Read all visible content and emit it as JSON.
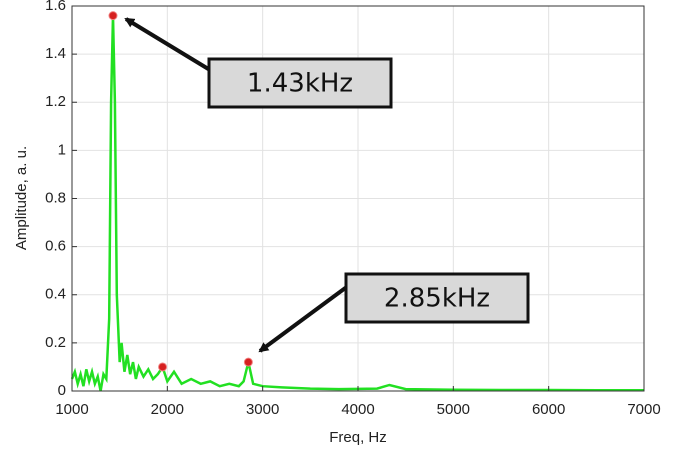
{
  "chart_data": {
    "type": "line",
    "xlabel": "Freq, Hz",
    "ylabel": "Amplitude, a. u.",
    "x": [
      1000,
      1030,
      1060,
      1090,
      1120,
      1150,
      1180,
      1210,
      1240,
      1270,
      1300,
      1330,
      1360,
      1390,
      1410,
      1430,
      1450,
      1470,
      1500,
      1520,
      1550,
      1580,
      1610,
      1640,
      1670,
      1700,
      1750,
      1800,
      1850,
      1900,
      1950,
      2000,
      2070,
      2150,
      2250,
      2350,
      2450,
      2550,
      2650,
      2750,
      2800,
      2850,
      2900,
      3000,
      3200,
      3500,
      3800,
      4200,
      4330,
      4500,
      5000,
      5500,
      6000,
      6500,
      7000
    ],
    "values": [
      0.05,
      0.08,
      0.03,
      0.07,
      0.02,
      0.09,
      0.04,
      0.08,
      0.03,
      0.06,
      0.0,
      0.07,
      0.05,
      0.3,
      1.2,
      1.56,
      1.2,
      0.4,
      0.12,
      0.2,
      0.08,
      0.15,
      0.07,
      0.12,
      0.05,
      0.1,
      0.06,
      0.09,
      0.05,
      0.07,
      0.1,
      0.04,
      0.08,
      0.03,
      0.05,
      0.03,
      0.04,
      0.02,
      0.03,
      0.02,
      0.04,
      0.12,
      0.03,
      0.02,
      0.015,
      0.01,
      0.008,
      0.01,
      0.025,
      0.008,
      0.005,
      0.004,
      0.004,
      0.003,
      0.003
    ],
    "color": "#22e022",
    "markers": {
      "x": [
        1430,
        1950,
        2850
      ],
      "values": [
        1.56,
        0.1,
        0.12
      ],
      "color": "#d62020"
    },
    "annotations": [
      "1.43kHz",
      "2.85kHz"
    ],
    "xlim": [
      1000,
      7000
    ],
    "xticks": [
      1000,
      2000,
      3000,
      4000,
      5000,
      6000,
      7000
    ],
    "ylim": [
      0,
      1.6
    ],
    "yticks": [
      0,
      0.2,
      0.4,
      0.6,
      0.8,
      1,
      1.2,
      1.4,
      1.6
    ],
    "grid": true
  }
}
